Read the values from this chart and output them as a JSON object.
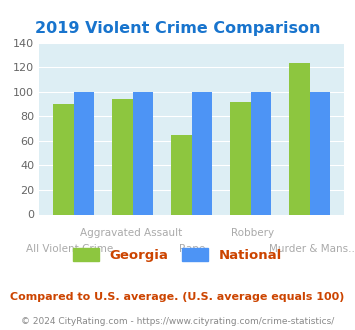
{
  "title": "2019 Violent Crime Comparison",
  "title_color": "#1874cd",
  "categories": [
    "All Violent Crime",
    "Aggravated Assault",
    "Rape",
    "Robbery",
    "Murder & Mans..."
  ],
  "georgia_values": [
    90,
    94,
    65,
    92,
    124
  ],
  "national_values": [
    100,
    100,
    100,
    100,
    100
  ],
  "georgia_color": "#8dc63f",
  "national_color": "#4d94f5",
  "plot_bg_color": "#ddeef4",
  "ylim": [
    0,
    140
  ],
  "yticks": [
    0,
    20,
    40,
    60,
    80,
    100,
    120,
    140
  ],
  "xlabel_color": "#aaaaaa",
  "xlabel_fontsize": 7.5,
  "ylabel_fontsize": 8,
  "legend_georgia": "Georgia",
  "legend_national": "National",
  "legend_fontsize": 9.5,
  "legend_text_color": "#cc4400",
  "footer_text": "Compared to U.S. average. (U.S. average equals 100)",
  "footer_color": "#cc4400",
  "footer_fontsize": 8.0,
  "copyright_text": "© 2024 CityRating.com - https://www.cityrating.com/crime-statistics/",
  "copyright_color": "#888888",
  "copyright_fontsize": 6.5,
  "xlabels_line1": [
    "",
    "Aggravated Assault",
    "",
    "Robbery",
    ""
  ],
  "xlabels_line2": [
    "All Violent Crime",
    "",
    "Rape",
    "",
    "Murder & Mans..."
  ]
}
